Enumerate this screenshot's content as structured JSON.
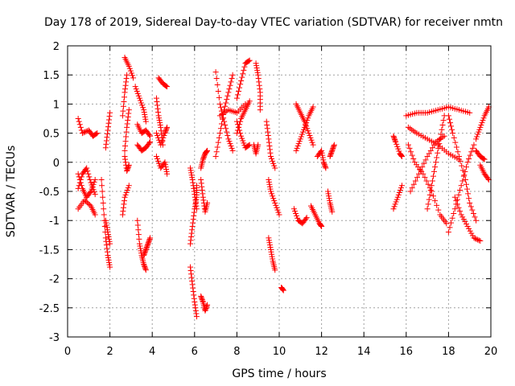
{
  "chart_data": {
    "type": "scatter",
    "title": "Day 178 of 2019, Sidereal Day-to-day VTEC variation (SDTVAR) for receiver nmtn",
    "xlabel": "GPS time / hours",
    "ylabel": "SDTVAR / TECUs",
    "xlim": [
      0,
      20
    ],
    "ylim": [
      -3,
      2
    ],
    "x_ticks": [
      "0",
      "2",
      "4",
      "6",
      "8",
      "10",
      "12",
      "14",
      "16",
      "18",
      "20"
    ],
    "y_ticks": [
      "2",
      "1.5",
      "1",
      "0.5",
      "0",
      "-0.5",
      "-1",
      "-1.5",
      "-2",
      "-2.5",
      "-3"
    ],
    "grid": true,
    "marker": "+",
    "marker_color": "#ff0000",
    "series": [
      {
        "name": "SDTVAR",
        "tracks": [
          [
            [
              0.5,
              0.75
            ],
            [
              0.7,
              0.5
            ],
            [
              1.0,
              0.55
            ],
            [
              1.2,
              0.45
            ],
            [
              1.4,
              0.5
            ]
          ],
          [
            [
              0.5,
              -0.2
            ],
            [
              0.7,
              -0.45
            ],
            [
              0.9,
              -0.6
            ],
            [
              1.1,
              -0.5
            ],
            [
              1.3,
              -0.3
            ]
          ],
          [
            [
              0.5,
              -0.45
            ],
            [
              0.7,
              -0.2
            ],
            [
              0.9,
              -0.1
            ],
            [
              1.1,
              -0.35
            ],
            [
              1.3,
              -0.55
            ]
          ],
          [
            [
              0.5,
              -0.8
            ],
            [
              0.8,
              -0.65
            ],
            [
              1.1,
              -0.75
            ],
            [
              1.3,
              -0.9
            ]
          ],
          [
            [
              1.6,
              -0.3
            ],
            [
              1.7,
              -0.8
            ],
            [
              1.8,
              -1.3
            ],
            [
              1.9,
              -1.6
            ],
            [
              2.0,
              -1.8
            ]
          ],
          [
            [
              1.8,
              -1.0
            ],
            [
              1.9,
              -1.2
            ],
            [
              2.0,
              -1.4
            ]
          ],
          [
            [
              1.8,
              0.25
            ],
            [
              1.9,
              0.55
            ],
            [
              2.0,
              0.85
            ]
          ],
          [
            [
              2.7,
              1.8
            ],
            [
              2.9,
              1.65
            ],
            [
              3.1,
              1.45
            ]
          ],
          [
            [
              2.6,
              0.8
            ],
            [
              2.7,
              1.2
            ],
            [
              2.8,
              1.5
            ]
          ],
          [
            [
              2.7,
              0.2
            ],
            [
              2.8,
              0.6
            ],
            [
              2.9,
              0.9
            ]
          ],
          [
            [
              2.7,
              0.1
            ],
            [
              2.8,
              -0.15
            ],
            [
              2.9,
              -0.05
            ]
          ],
          [
            [
              2.6,
              -0.9
            ],
            [
              2.7,
              -0.6
            ],
            [
              2.9,
              -0.4
            ]
          ],
          [
            [
              3.2,
              1.3
            ],
            [
              3.4,
              1.1
            ],
            [
              3.6,
              0.9
            ],
            [
              3.7,
              0.7
            ]
          ],
          [
            [
              3.3,
              0.65
            ],
            [
              3.5,
              0.5
            ],
            [
              3.7,
              0.55
            ],
            [
              3.9,
              0.45
            ]
          ],
          [
            [
              3.3,
              0.3
            ],
            [
              3.5,
              0.2
            ],
            [
              3.7,
              0.25
            ],
            [
              3.9,
              0.35
            ]
          ],
          [
            [
              3.3,
              -1.0
            ],
            [
              3.4,
              -1.4
            ],
            [
              3.5,
              -1.6
            ],
            [
              3.6,
              -1.75
            ],
            [
              3.7,
              -1.85
            ]
          ],
          [
            [
              3.6,
              -1.6
            ],
            [
              3.7,
              -1.5
            ],
            [
              3.8,
              -1.4
            ],
            [
              3.9,
              -1.3
            ]
          ],
          [
            [
              4.3,
              1.45
            ],
            [
              4.5,
              1.35
            ],
            [
              4.7,
              1.3
            ]
          ],
          [
            [
              4.2,
              1.1
            ],
            [
              4.3,
              0.8
            ],
            [
              4.4,
              0.6
            ],
            [
              4.5,
              0.3
            ]
          ],
          [
            [
              4.2,
              0.5
            ],
            [
              4.4,
              0.3
            ],
            [
              4.6,
              0.5
            ],
            [
              4.7,
              0.6
            ]
          ],
          [
            [
              4.2,
              0.1
            ],
            [
              4.4,
              -0.1
            ],
            [
              4.6,
              0.0
            ],
            [
              4.7,
              -0.2
            ]
          ],
          [
            [
              5.8,
              -1.4
            ],
            [
              5.9,
              -1.1
            ],
            [
              6.0,
              -0.8
            ],
            [
              6.1,
              -0.6
            ],
            [
              6.1,
              -0.4
            ]
          ],
          [
            [
              5.8,
              -0.1
            ],
            [
              5.9,
              -0.3
            ],
            [
              6.0,
              -0.55
            ],
            [
              6.1,
              -0.8
            ]
          ],
          [
            [
              5.8,
              -1.8
            ],
            [
              5.9,
              -2.1
            ],
            [
              6.0,
              -2.4
            ],
            [
              6.1,
              -2.65
            ]
          ],
          [
            [
              6.3,
              -2.3
            ],
            [
              6.4,
              -2.4
            ],
            [
              6.5,
              -2.55
            ],
            [
              6.6,
              -2.45
            ]
          ],
          [
            [
              6.3,
              -0.3
            ],
            [
              6.4,
              -0.6
            ],
            [
              6.5,
              -0.85
            ],
            [
              6.6,
              -0.7
            ]
          ],
          [
            [
              6.3,
              -0.1
            ],
            [
              6.4,
              0.05
            ],
            [
              6.5,
              0.15
            ],
            [
              6.6,
              0.2
            ]
          ],
          [
            [
              7.0,
              1.55
            ],
            [
              7.2,
              1.0
            ],
            [
              7.4,
              0.7
            ],
            [
              7.6,
              0.4
            ],
            [
              7.8,
              0.2
            ]
          ],
          [
            [
              7.0,
              0.1
            ],
            [
              7.2,
              0.5
            ],
            [
              7.4,
              0.9
            ],
            [
              7.6,
              1.2
            ],
            [
              7.8,
              1.5
            ]
          ],
          [
            [
              7.2,
              0.8
            ],
            [
              7.6,
              0.9
            ],
            [
              8.0,
              0.85
            ],
            [
              8.4,
              1.0
            ]
          ],
          [
            [
              8.0,
              1.1
            ],
            [
              8.2,
              1.4
            ],
            [
              8.4,
              1.7
            ],
            [
              8.6,
              1.75
            ]
          ],
          [
            [
              8.0,
              0.5
            ],
            [
              8.2,
              0.75
            ],
            [
              8.4,
              0.9
            ],
            [
              8.6,
              1.05
            ]
          ],
          [
            [
              8.0,
              0.7
            ],
            [
              8.2,
              0.45
            ],
            [
              8.4,
              0.25
            ],
            [
              8.6,
              0.3
            ]
          ],
          [
            [
              8.9,
              1.7
            ],
            [
              9.0,
              1.5
            ],
            [
              9.1,
              1.2
            ],
            [
              9.1,
              0.9
            ]
          ],
          [
            [
              8.8,
              0.3
            ],
            [
              8.9,
              0.15
            ],
            [
              9.0,
              0.3
            ]
          ],
          [
            [
              9.4,
              0.7
            ],
            [
              9.5,
              0.4
            ],
            [
              9.6,
              0.1
            ],
            [
              9.8,
              -0.1
            ]
          ],
          [
            [
              9.5,
              -0.3
            ],
            [
              9.6,
              -0.5
            ],
            [
              9.8,
              -0.7
            ],
            [
              10.0,
              -0.9
            ]
          ],
          [
            [
              9.5,
              -1.3
            ],
            [
              9.6,
              -1.5
            ],
            [
              9.7,
              -1.7
            ],
            [
              9.8,
              -1.85
            ]
          ],
          [
            [
              10.1,
              -2.15
            ],
            [
              10.2,
              -2.2
            ]
          ],
          [
            [
              10.8,
              1.0
            ],
            [
              11.0,
              0.85
            ],
            [
              11.2,
              0.7
            ],
            [
              11.4,
              0.5
            ],
            [
              11.6,
              0.3
            ]
          ],
          [
            [
              10.8,
              0.2
            ],
            [
              11.0,
              0.4
            ],
            [
              11.2,
              0.6
            ],
            [
              11.4,
              0.8
            ],
            [
              11.6,
              0.95
            ]
          ],
          [
            [
              10.7,
              -0.8
            ],
            [
              10.9,
              -1.0
            ],
            [
              11.1,
              -1.05
            ],
            [
              11.3,
              -0.95
            ]
          ],
          [
            [
              11.5,
              -0.75
            ],
            [
              11.7,
              -0.9
            ],
            [
              11.9,
              -1.05
            ],
            [
              12.0,
              -1.1
            ]
          ],
          [
            [
              11.8,
              0.1
            ],
            [
              12.0,
              0.2
            ],
            [
              12.1,
              0.0
            ],
            [
              12.2,
              -0.1
            ]
          ],
          [
            [
              12.3,
              -0.5
            ],
            [
              12.4,
              -0.7
            ],
            [
              12.5,
              -0.85
            ]
          ],
          [
            [
              12.4,
              0.1
            ],
            [
              12.5,
              0.2
            ],
            [
              12.6,
              0.3
            ]
          ],
          [
            [
              15.4,
              0.45
            ],
            [
              15.5,
              0.35
            ],
            [
              15.7,
              0.15
            ],
            [
              15.8,
              0.1
            ]
          ],
          [
            [
              15.4,
              -0.8
            ],
            [
              15.6,
              -0.6
            ],
            [
              15.8,
              -0.4
            ]
          ],
          [
            [
              16.0,
              0.8
            ],
            [
              16.5,
              0.85
            ],
            [
              17.0,
              0.85
            ],
            [
              17.5,
              0.9
            ],
            [
              18.0,
              0.95
            ],
            [
              18.5,
              0.9
            ],
            [
              19.0,
              0.85
            ]
          ],
          [
            [
              16.1,
              0.6
            ],
            [
              16.5,
              0.5
            ],
            [
              17.0,
              0.4
            ],
            [
              17.5,
              0.3
            ],
            [
              18.0,
              0.15
            ],
            [
              18.5,
              0.05
            ]
          ],
          [
            [
              16.1,
              0.3
            ],
            [
              16.4,
              0.0
            ],
            [
              16.8,
              -0.2
            ],
            [
              17.2,
              -0.5
            ],
            [
              17.6,
              -0.9
            ],
            [
              17.9,
              -1.05
            ]
          ],
          [
            [
              16.2,
              -0.5
            ],
            [
              16.6,
              -0.2
            ],
            [
              17.0,
              0.1
            ],
            [
              17.4,
              0.35
            ],
            [
              17.8,
              0.45
            ]
          ],
          [
            [
              17.0,
              -0.8
            ],
            [
              17.2,
              -0.4
            ],
            [
              17.4,
              0.0
            ],
            [
              17.6,
              0.4
            ],
            [
              17.8,
              0.8
            ]
          ],
          [
            [
              18.0,
              0.8
            ],
            [
              18.2,
              0.5
            ],
            [
              18.5,
              0.1
            ],
            [
              18.8,
              -0.3
            ],
            [
              19.0,
              -0.7
            ],
            [
              19.3,
              -1.0
            ]
          ],
          [
            [
              18.0,
              -1.2
            ],
            [
              18.3,
              -0.8
            ],
            [
              18.6,
              -0.4
            ],
            [
              18.9,
              0.0
            ],
            [
              19.2,
              0.3
            ]
          ],
          [
            [
              18.3,
              -0.6
            ],
            [
              18.6,
              -0.9
            ],
            [
              18.9,
              -1.1
            ],
            [
              19.2,
              -1.3
            ],
            [
              19.5,
              -1.35
            ]
          ],
          [
            [
              19.3,
              0.4
            ],
            [
              19.5,
              0.6
            ],
            [
              19.7,
              0.8
            ],
            [
              19.9,
              0.95
            ]
          ],
          [
            [
              19.5,
              -0.05
            ],
            [
              19.7,
              -0.2
            ],
            [
              19.9,
              -0.3
            ]
          ],
          [
            [
              19.3,
              0.2
            ],
            [
              19.5,
              0.1
            ],
            [
              19.7,
              0.05
            ]
          ]
        ]
      }
    ]
  }
}
